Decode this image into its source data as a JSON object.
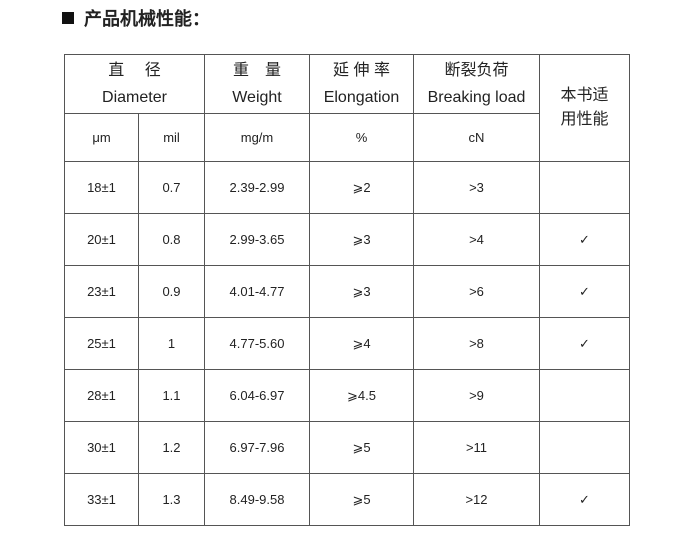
{
  "section_title": "产品机械性能：",
  "table": {
    "headers": {
      "diameter": {
        "cn": "直　 径",
        "en": "Diameter"
      },
      "weight": {
        "cn": "重　量",
        "en": "Weight"
      },
      "elongation": {
        "cn": "延 伸 率",
        "en": "Elongation"
      },
      "breaking_load": {
        "cn": "断裂负荷",
        "en": "Breaking load"
      },
      "applicable": "本书适用性能"
    },
    "units": [
      "μm",
      "mil",
      "mg/m",
      "%",
      "cN"
    ],
    "rows": [
      [
        "18±1",
        "0.7",
        "2.39-2.99",
        "⩾2",
        ">3",
        ""
      ],
      [
        "20±1",
        "0.8",
        "2.99-3.65",
        "⩾3",
        ">4",
        "✓"
      ],
      [
        "23±1",
        "0.9",
        "4.01-4.77",
        "⩾3",
        ">6",
        "✓"
      ],
      [
        "25±1",
        "1",
        "4.77-5.60",
        "⩾4",
        ">8",
        "✓"
      ],
      [
        "28±1",
        "1.1",
        "6.04-6.97",
        "⩾4.5",
        ">9",
        ""
      ],
      [
        "30±1",
        "1.2",
        "6.97-7.96",
        "⩾5",
        ">11",
        ""
      ],
      [
        "33±1",
        "1.3",
        "8.49-9.58",
        "⩾5",
        ">12",
        "✓"
      ]
    ]
  }
}
